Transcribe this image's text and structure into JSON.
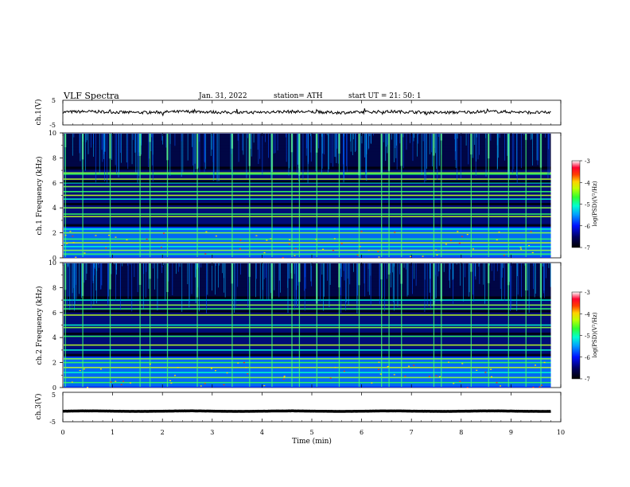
{
  "header": {
    "title": "VLF  Spectra",
    "date": "Jan.  31,  2022",
    "station": "station= ATH",
    "start": "start  UT  =    21: 50: 1"
  },
  "colors": {
    "background_spectrogram": "#000010",
    "deep_blue": "#0016c8",
    "trace": "#000000"
  },
  "chart_data": [
    {
      "type": "line",
      "panel": "ch1-voltage",
      "ylabel": "ch.1(V)",
      "ylim": [
        -5,
        5
      ],
      "yticks": [
        "5",
        "-5"
      ],
      "xlim": [
        0,
        10
      ],
      "description_values": {
        "mean_v": 0.2,
        "peak_to_peak_v": 1.5
      }
    },
    {
      "type": "heatmap",
      "panel": "ch1-spectrogram",
      "ylabel": "ch.1 Frequency (kHz)",
      "ylim": [
        0,
        10
      ],
      "yticks": [
        "0",
        "2",
        "4",
        "6",
        "8",
        "10"
      ],
      "xlim": [
        0,
        9.8
      ],
      "colorbar": {
        "label": "log(PSD)(V²/Hz)",
        "range": [
          -7,
          -3
        ],
        "ticks": [
          "-3",
          "-4",
          "-5",
          "-6",
          "-7"
        ]
      },
      "bands_khz": [
        0.3,
        0.6,
        0.9,
        1.2,
        1.5,
        2.0,
        2.3,
        3.3,
        3.5,
        4.0,
        4.7,
        5.0,
        5.3,
        5.7,
        6.0,
        6.3,
        6.7,
        6.8
      ],
      "sferic_times_min": [
        0.05,
        0.4,
        0.95,
        1.55,
        1.75,
        2.1,
        2.7,
        3.4,
        3.75,
        4.2,
        4.6,
        4.75,
        5.1,
        5.55,
        5.95,
        6.4,
        6.55,
        6.8,
        7.45,
        7.6,
        8.2,
        8.55,
        8.95,
        9.3,
        9.6
      ]
    },
    {
      "type": "heatmap",
      "panel": "ch2-spectrogram",
      "ylabel": "ch.2 Frequency (kHz)",
      "ylim": [
        0,
        10
      ],
      "yticks": [
        "0",
        "2",
        "4",
        "6",
        "8",
        "10"
      ],
      "xlim": [
        0,
        9.8
      ],
      "colorbar": {
        "label": "log(PSD)(V²/Hz)",
        "range": [
          -7,
          -3
        ],
        "ticks": [
          "-3",
          "-4",
          "-5",
          "-6",
          "-7"
        ]
      },
      "bands_khz": [
        0.4,
        0.8,
        1.2,
        1.6,
        2.0,
        2.3,
        3.0,
        3.4,
        4.1,
        4.8,
        5.0,
        5.8,
        6.3,
        6.6,
        7.0
      ],
      "sferic_times_min": [
        0.05,
        0.4,
        0.95,
        1.55,
        1.75,
        2.1,
        2.7,
        3.4,
        3.75,
        4.2,
        4.6,
        4.75,
        5.1,
        5.55,
        5.95,
        6.4,
        6.55,
        6.8,
        7.45,
        7.6,
        8.2,
        8.55,
        8.95,
        9.3,
        9.6
      ]
    },
    {
      "type": "line",
      "panel": "ch3-voltage",
      "ylabel": "ch.3(V)",
      "ylim": [
        -5,
        5
      ],
      "yticks": [
        "5",
        "-5"
      ],
      "xlim": [
        0,
        10
      ],
      "xlabel": "Time  (min)",
      "xticks": [
        "0",
        "1",
        "2",
        "3",
        "4",
        "5",
        "6",
        "7",
        "8",
        "9",
        "10"
      ],
      "description_values": {
        "mean_v": -1.4,
        "peak_to_peak_v": 0.6
      }
    }
  ]
}
